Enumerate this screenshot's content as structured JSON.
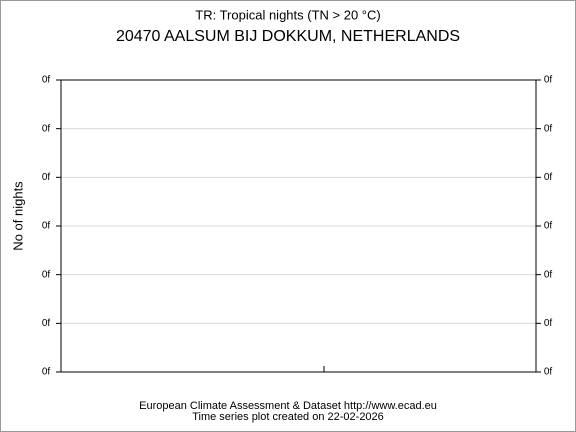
{
  "chart_data": {
    "type": "bar",
    "title": "TR: Tropical nights (TN > 20 °C)",
    "subtitle": "20470 AALSUM BIJ DOKKUM, NETHERLANDS",
    "y_label": "No of nights",
    "series": [],
    "ylim": [
      0,
      6
    ],
    "yticks": [
      {
        "value": 0,
        "label": "0f"
      },
      {
        "value": 1,
        "label": "0f"
      },
      {
        "value": 2,
        "label": "0f"
      },
      {
        "value": 3,
        "label": "0f"
      },
      {
        "value": 4,
        "label": "0f"
      },
      {
        "value": 5,
        "label": "0f"
      },
      {
        "value": 6,
        "label": "0f"
      }
    ],
    "grid": true,
    "footer": [
      "European Climate Assessment & Dataset  http://www.ecad.eu",
      "Time series plot created on 22-02-2026"
    ]
  }
}
